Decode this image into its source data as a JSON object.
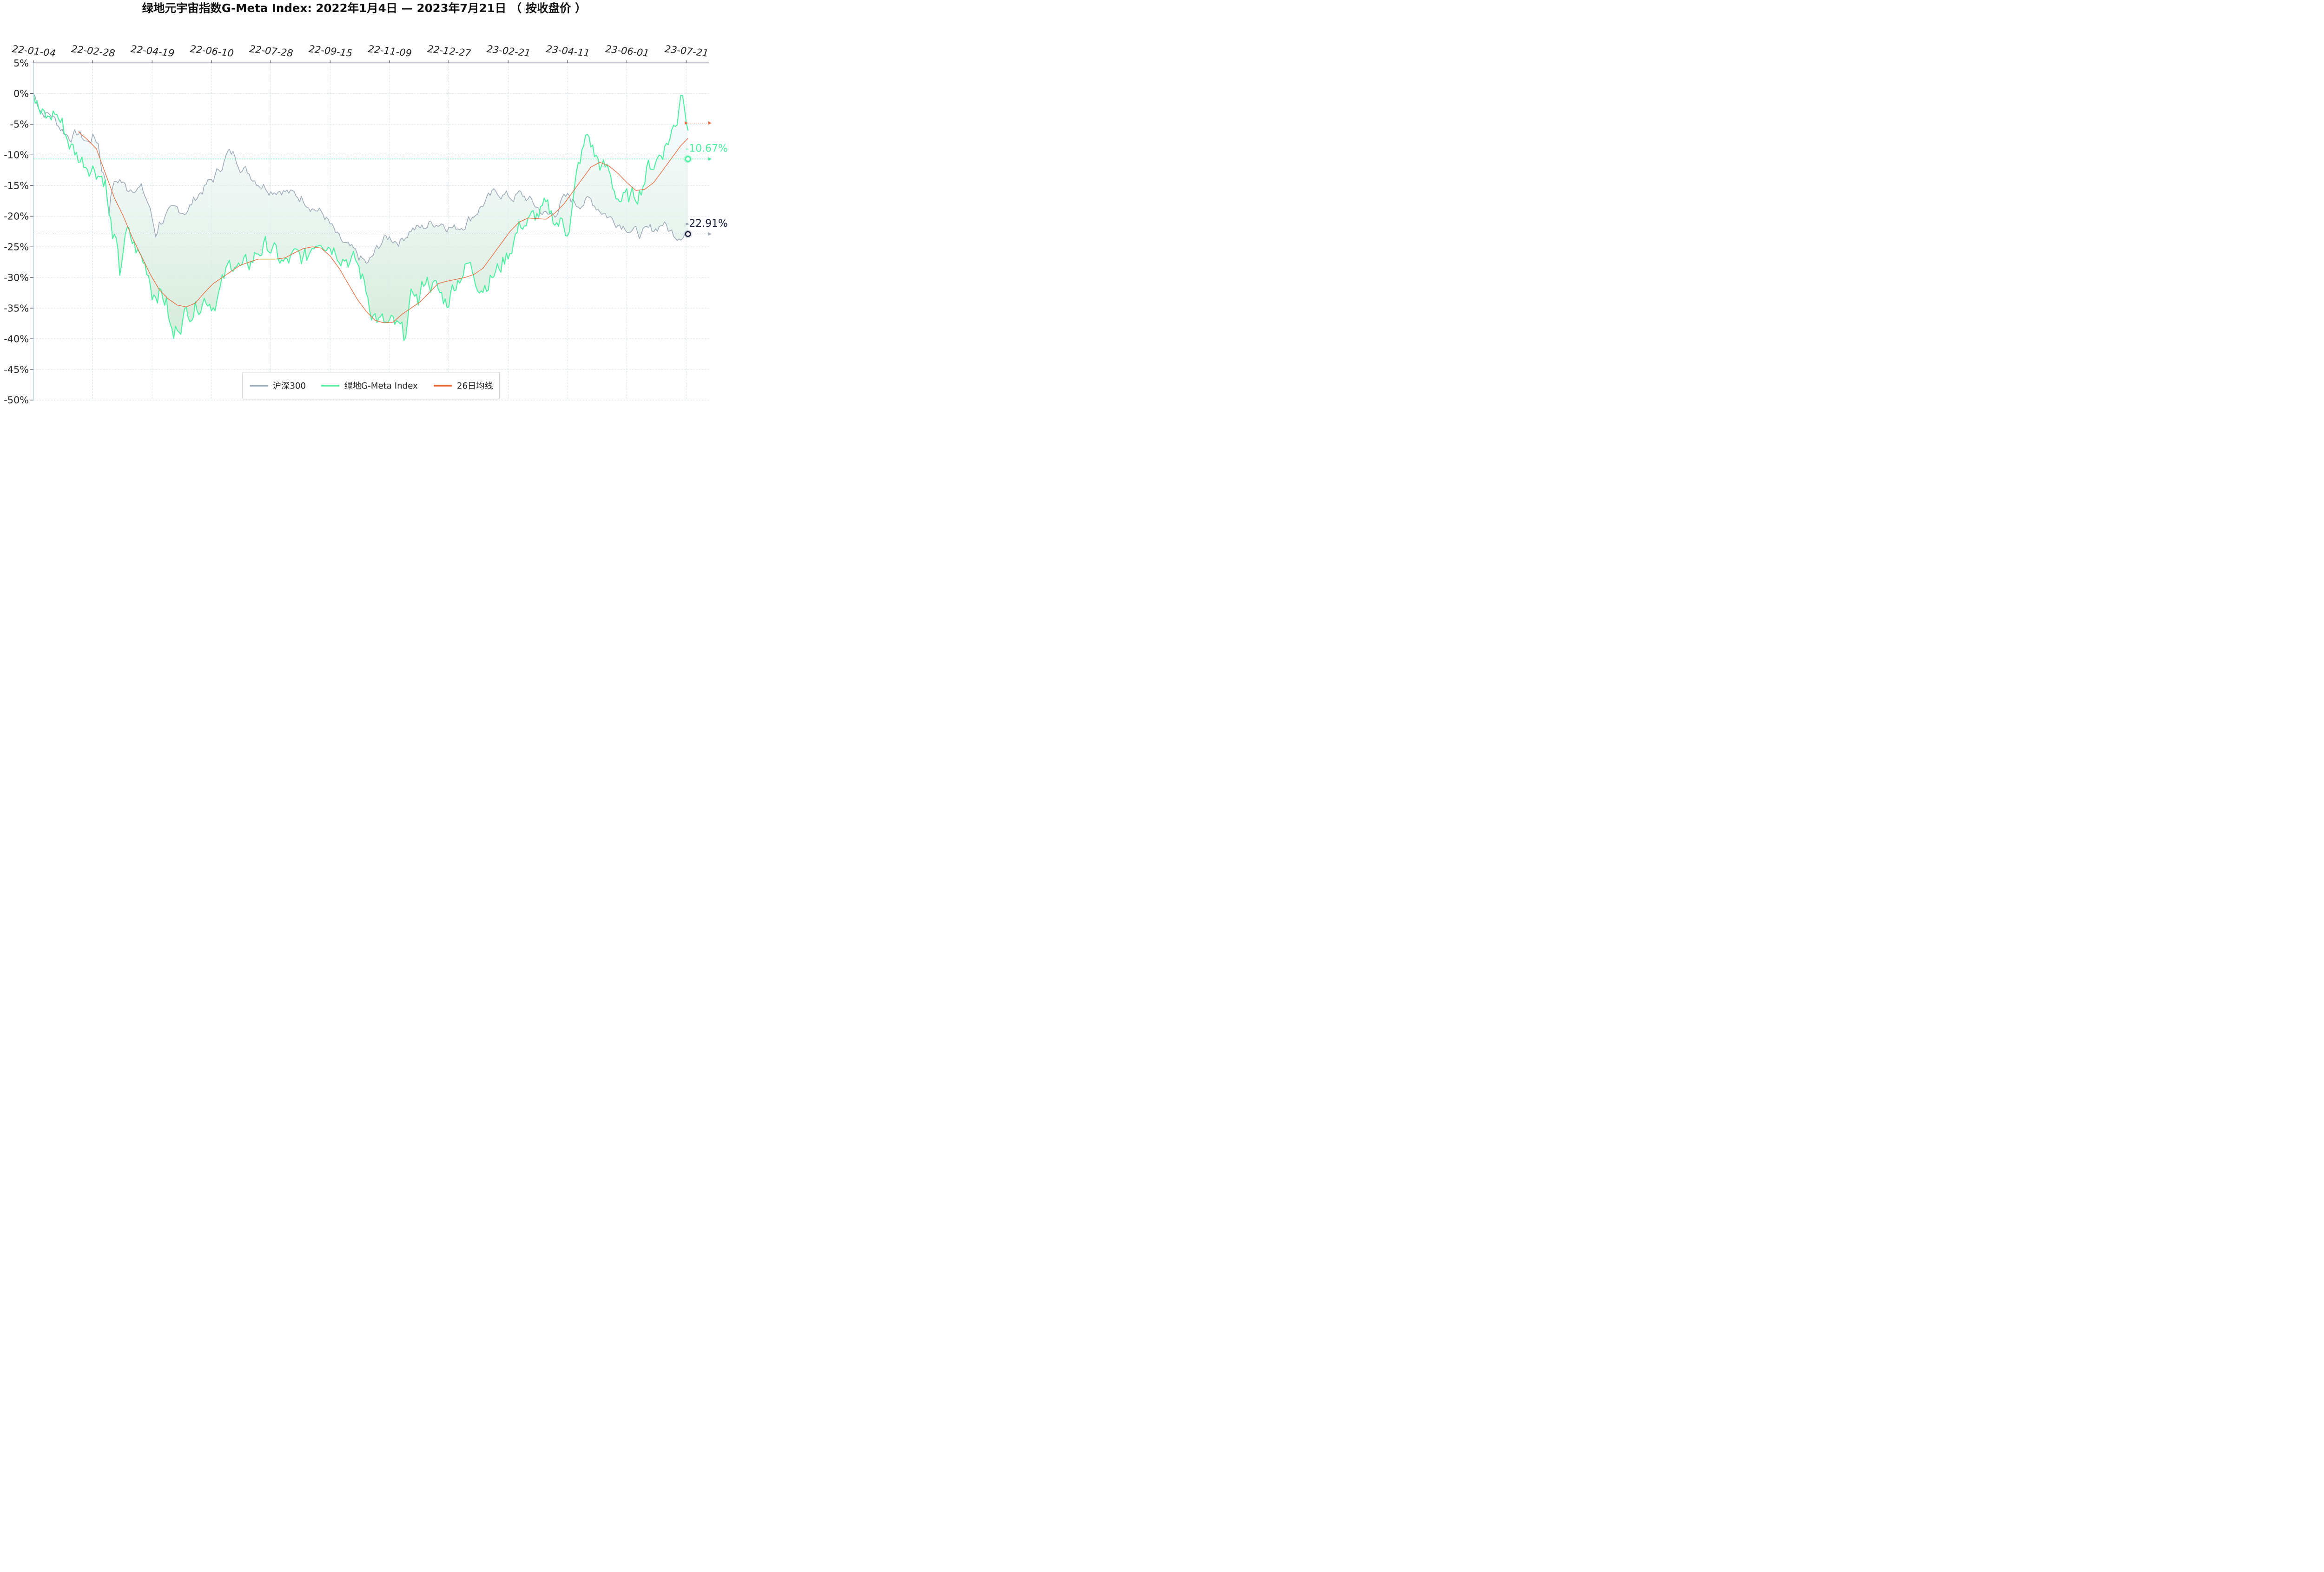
{
  "title": "绿地元宇宙指数G-Meta Index:  2022年1月4日  —  2023年7月21日 （ 按收盘价 ）",
  "colors": {
    "hs300": "#9aa8b8",
    "gmeta": "#4cf0a0",
    "ma26": "#e8683a",
    "grid": "#c8dce4",
    "axis": "#333344",
    "end_hs300_label": "#1a1f3a",
    "end_gmeta_label": "#4cf0a0",
    "fill_top": "#eef6fb",
    "fill_bottom": "#d2ead6"
  },
  "legend": {
    "placement": "bottom-center",
    "items": [
      {
        "label": "沪深300",
        "color": "#9aa8b8"
      },
      {
        "label": "绿地G-Meta Index",
        "color": "#4cf0a0"
      },
      {
        "label": "26日均线",
        "color": "#e8683a"
      }
    ]
  },
  "end_labels": {
    "gmeta": "-10.67%",
    "hs300": "-22.91%"
  },
  "chart_data": {
    "type": "line",
    "title": "绿地元宇宙指数G-Meta Index:  2022年1月4日  —  2023年7月21日 （ 按收盘价 ）",
    "xlabel": "",
    "ylabel": "",
    "ylim": [
      -50,
      5
    ],
    "grid": true,
    "x_range_index": [
      0,
      374
    ],
    "x_ticks": [
      {
        "label": "22-01-04",
        "i": 0
      },
      {
        "label": "22-02-28",
        "i": 33
      },
      {
        "label": "22-04-19",
        "i": 66
      },
      {
        "label": "22-06-10",
        "i": 99
      },
      {
        "label": "22-07-28",
        "i": 132
      },
      {
        "label": "22-09-15",
        "i": 165
      },
      {
        "label": "22-11-09",
        "i": 198
      },
      {
        "label": "22-12-27",
        "i": 231
      },
      {
        "label": "23-02-21",
        "i": 264
      },
      {
        "label": "23-04-11",
        "i": 297
      },
      {
        "label": "23-06-01",
        "i": 330
      },
      {
        "label": "23-07-21",
        "i": 363
      }
    ],
    "y_ticks": [
      {
        "label": "5%",
        "v": 5
      },
      {
        "label": "0%",
        "v": 0
      },
      {
        "label": "-5%",
        "v": -5
      },
      {
        "label": "-10%",
        "v": -10
      },
      {
        "label": "-15%",
        "v": -15
      },
      {
        "label": "-20%",
        "v": -20
      },
      {
        "label": "-25%",
        "v": -25
      },
      {
        "label": "-30%",
        "v": -30
      },
      {
        "label": "-35%",
        "v": -35
      },
      {
        "label": "-40%",
        "v": -40
      },
      {
        "label": "-45%",
        "v": -45
      },
      {
        "label": "-50%",
        "v": -50
      }
    ],
    "series": [
      {
        "name": "沪深300",
        "key": "hs300",
        "anchors": [
          [
            0,
            0
          ],
          [
            5,
            -3
          ],
          [
            10,
            -3.5
          ],
          [
            15,
            -5.5
          ],
          [
            20,
            -7
          ],
          [
            25,
            -6.5
          ],
          [
            30,
            -8
          ],
          [
            33,
            -7
          ],
          [
            36,
            -8
          ],
          [
            38,
            -12
          ],
          [
            40,
            -14
          ],
          [
            42,
            -19
          ],
          [
            44,
            -15
          ],
          [
            48,
            -14
          ],
          [
            52,
            -15.5
          ],
          [
            56,
            -15
          ],
          [
            60,
            -15.5
          ],
          [
            64,
            -18
          ],
          [
            68,
            -23
          ],
          [
            70,
            -21
          ],
          [
            74,
            -20
          ],
          [
            80,
            -19
          ],
          [
            86,
            -19
          ],
          [
            90,
            -17
          ],
          [
            96,
            -15
          ],
          [
            100,
            -14
          ],
          [
            104,
            -12
          ],
          [
            108,
            -9.8
          ],
          [
            112,
            -10
          ],
          [
            116,
            -12
          ],
          [
            120,
            -13
          ],
          [
            126,
            -14.5
          ],
          [
            132,
            -15.5
          ],
          [
            138,
            -15.5
          ],
          [
            144,
            -16.5
          ],
          [
            150,
            -17
          ],
          [
            154,
            -18
          ],
          [
            158,
            -19
          ],
          [
            162,
            -20
          ],
          [
            166,
            -22
          ],
          [
            170,
            -24
          ],
          [
            174,
            -25
          ],
          [
            178,
            -26
          ],
          [
            182,
            -27
          ],
          [
            186,
            -28
          ],
          [
            190,
            -26
          ],
          [
            194,
            -24
          ],
          [
            198,
            -23.5
          ],
          [
            204,
            -24
          ],
          [
            210,
            -22
          ],
          [
            216,
            -22
          ],
          [
            222,
            -21
          ],
          [
            228,
            -21
          ],
          [
            234,
            -22
          ],
          [
            238,
            -21.5
          ],
          [
            244,
            -20
          ],
          [
            250,
            -18
          ],
          [
            254,
            -17
          ],
          [
            258,
            -16
          ],
          [
            262,
            -16.5
          ],
          [
            266,
            -17
          ],
          [
            270,
            -16.5
          ],
          [
            274,
            -17
          ],
          [
            278,
            -18
          ],
          [
            282,
            -19
          ],
          [
            286,
            -20
          ],
          [
            290,
            -19.5
          ],
          [
            294,
            -17.5
          ],
          [
            298,
            -17
          ],
          [
            302,
            -18
          ],
          [
            306,
            -17.5
          ],
          [
            310,
            -17.5
          ],
          [
            314,
            -18.5
          ],
          [
            318,
            -19.5
          ],
          [
            322,
            -20.5
          ],
          [
            326,
            -21
          ],
          [
            330,
            -21.5
          ],
          [
            334,
            -22.5
          ],
          [
            338,
            -23
          ],
          [
            342,
            -22.5
          ],
          [
            346,
            -22
          ],
          [
            350,
            -21
          ],
          [
            354,
            -22.5
          ],
          [
            358,
            -23
          ],
          [
            362,
            -22.5
          ],
          [
            366,
            -22
          ],
          [
            370,
            -22.5
          ],
          [
            374,
            -22.91
          ]
        ]
      },
      {
        "name": "绿地G-Meta Index",
        "key": "gmeta",
        "anchors": [
          [
            0,
            0
          ],
          [
            4,
            -3.5
          ],
          [
            8,
            -4.5
          ],
          [
            12,
            -3
          ],
          [
            16,
            -5
          ],
          [
            20,
            -8
          ],
          [
            24,
            -10
          ],
          [
            28,
            -11
          ],
          [
            32,
            -11.5
          ],
          [
            36,
            -12.5
          ],
          [
            40,
            -14
          ],
          [
            42,
            -20
          ],
          [
            44,
            -23
          ],
          [
            46,
            -25
          ],
          [
            48,
            -30
          ],
          [
            50,
            -25
          ],
          [
            52,
            -23
          ],
          [
            56,
            -25
          ],
          [
            60,
            -27
          ],
          [
            64,
            -29
          ],
          [
            66,
            -32
          ],
          [
            70,
            -32
          ],
          [
            74,
            -34
          ],
          [
            76,
            -38
          ],
          [
            78,
            -40
          ],
          [
            80,
            -38
          ],
          [
            84,
            -36
          ],
          [
            88,
            -35
          ],
          [
            92,
            -34
          ],
          [
            96,
            -33
          ],
          [
            100,
            -34
          ],
          [
            104,
            -32
          ],
          [
            108,
            -29
          ],
          [
            112,
            -27
          ],
          [
            116,
            -29
          ],
          [
            120,
            -28
          ],
          [
            124,
            -26
          ],
          [
            128,
            -25
          ],
          [
            132,
            -25
          ],
          [
            136,
            -27
          ],
          [
            140,
            -28
          ],
          [
            144,
            -27
          ],
          [
            148,
            -27
          ],
          [
            152,
            -27
          ],
          [
            156,
            -24
          ],
          [
            160,
            -23
          ],
          [
            164,
            -24
          ],
          [
            168,
            -25
          ],
          [
            172,
            -26
          ],
          [
            176,
            -27
          ],
          [
            180,
            -28
          ],
          [
            184,
            -31
          ],
          [
            188,
            -35
          ],
          [
            192,
            -37
          ],
          [
            196,
            -38
          ],
          [
            200,
            -38
          ],
          [
            204,
            -39
          ],
          [
            206,
            -40
          ],
          [
            208,
            -37
          ],
          [
            210,
            -34
          ],
          [
            212,
            -32
          ],
          [
            214,
            -34
          ],
          [
            218,
            -30
          ],
          [
            222,
            -31
          ],
          [
            226,
            -33
          ],
          [
            230,
            -34
          ],
          [
            234,
            -31
          ],
          [
            238,
            -29
          ],
          [
            242,
            -28
          ],
          [
            246,
            -30
          ],
          [
            250,
            -31
          ],
          [
            254,
            -30
          ],
          [
            258,
            -29
          ],
          [
            262,
            -27
          ],
          [
            264,
            -26
          ],
          [
            268,
            -23
          ],
          [
            272,
            -21
          ],
          [
            276,
            -21
          ],
          [
            280,
            -20
          ],
          [
            284,
            -19
          ],
          [
            288,
            -20
          ],
          [
            292,
            -21
          ],
          [
            294,
            -21
          ],
          [
            296,
            -22
          ],
          [
            298,
            -21
          ],
          [
            300,
            -18
          ],
          [
            302,
            -14
          ],
          [
            304,
            -11
          ],
          [
            306,
            -9
          ],
          [
            308,
            -7
          ],
          [
            310,
            -8
          ],
          [
            312,
            -10
          ],
          [
            316,
            -12
          ],
          [
            320,
            -13
          ],
          [
            322,
            -15
          ],
          [
            326,
            -17
          ],
          [
            330,
            -17.5
          ],
          [
            334,
            -17
          ],
          [
            338,
            -15
          ],
          [
            342,
            -12
          ],
          [
            346,
            -11
          ],
          [
            350,
            -9
          ],
          [
            354,
            -7
          ],
          [
            358,
            -4
          ],
          [
            360,
            1
          ],
          [
            362,
            -1
          ],
          [
            364,
            -4
          ],
          [
            366,
            -4.5
          ],
          [
            368,
            -5
          ],
          [
            370,
            -4
          ],
          [
            372,
            -7
          ],
          [
            374,
            -10.67
          ]
        ]
      },
      {
        "name": "26日均线",
        "key": "ma26",
        "anchors": [
          [
            25,
            -6.2
          ],
          [
            30,
            -7.5
          ],
          [
            35,
            -9
          ],
          [
            40,
            -13
          ],
          [
            45,
            -17
          ],
          [
            50,
            -20
          ],
          [
            55,
            -23.5
          ],
          [
            60,
            -26.5
          ],
          [
            65,
            -29.5
          ],
          [
            70,
            -32
          ],
          [
            75,
            -33.5
          ],
          [
            80,
            -34.5
          ],
          [
            85,
            -34.8
          ],
          [
            90,
            -34.2
          ],
          [
            95,
            -32.5
          ],
          [
            100,
            -31
          ],
          [
            105,
            -30
          ],
          [
            110,
            -29
          ],
          [
            115,
            -28
          ],
          [
            120,
            -27.5
          ],
          [
            125,
            -27
          ],
          [
            130,
            -27
          ],
          [
            135,
            -27
          ],
          [
            140,
            -26.8
          ],
          [
            145,
            -26
          ],
          [
            150,
            -25.3
          ],
          [
            155,
            -25
          ],
          [
            160,
            -25.2
          ],
          [
            165,
            -26.5
          ],
          [
            170,
            -28.5
          ],
          [
            175,
            -31
          ],
          [
            180,
            -33.5
          ],
          [
            185,
            -35.5
          ],
          [
            190,
            -37
          ],
          [
            195,
            -37.4
          ],
          [
            200,
            -37.3
          ],
          [
            205,
            -36
          ],
          [
            210,
            -35
          ],
          [
            215,
            -34
          ],
          [
            220,
            -32.5
          ],
          [
            225,
            -31
          ],
          [
            230,
            -30.6
          ],
          [
            235,
            -30.3
          ],
          [
            240,
            -30
          ],
          [
            245,
            -29.5
          ],
          [
            250,
            -28.5
          ],
          [
            255,
            -26.5
          ],
          [
            260,
            -24.5
          ],
          [
            265,
            -22.5
          ],
          [
            270,
            -21
          ],
          [
            275,
            -20.3
          ],
          [
            280,
            -20.4
          ],
          [
            285,
            -20.5
          ],
          [
            290,
            -19.5
          ],
          [
            295,
            -18
          ],
          [
            300,
            -16
          ],
          [
            305,
            -14
          ],
          [
            310,
            -12
          ],
          [
            315,
            -11.2
          ],
          [
            320,
            -11.8
          ],
          [
            325,
            -13
          ],
          [
            330,
            -14.5
          ],
          [
            335,
            -15.8
          ],
          [
            340,
            -15.6
          ],
          [
            345,
            -14.5
          ],
          [
            350,
            -12.5
          ],
          [
            355,
            -10.5
          ],
          [
            360,
            -8.5
          ],
          [
            365,
            -7
          ],
          [
            370,
            -5.5
          ],
          [
            374,
            -4.8
          ]
        ]
      }
    ]
  }
}
